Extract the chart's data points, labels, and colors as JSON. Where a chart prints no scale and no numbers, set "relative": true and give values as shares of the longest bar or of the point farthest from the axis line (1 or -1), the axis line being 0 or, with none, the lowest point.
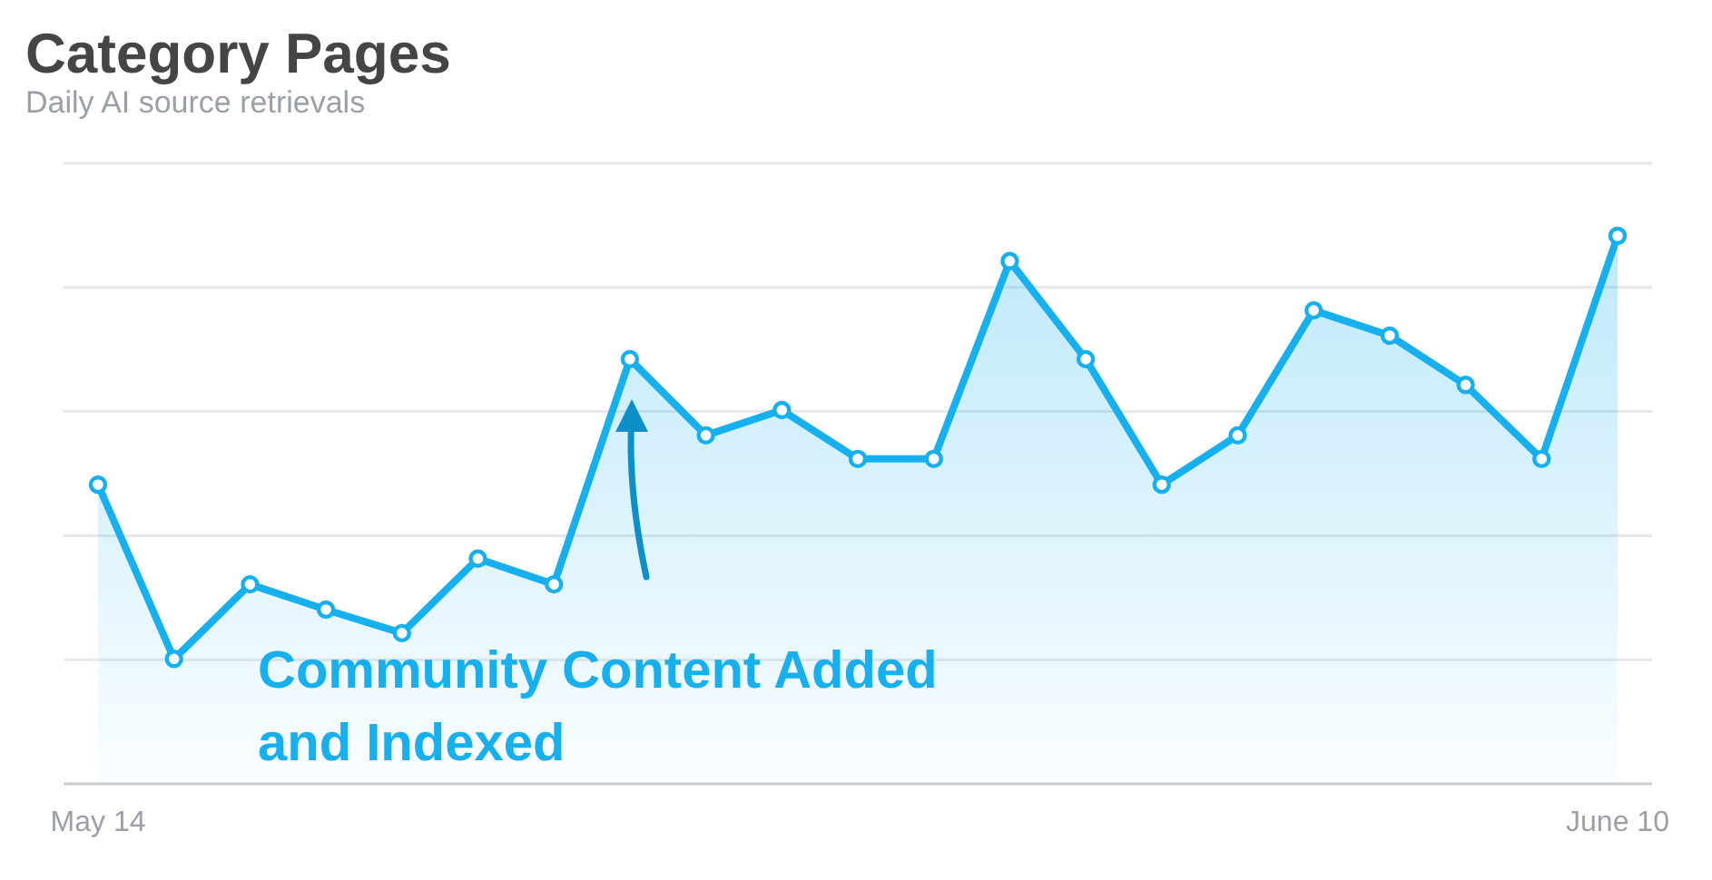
{
  "chart_data": {
    "type": "area",
    "title": "Category Pages",
    "subtitle": "Daily AI source retrievals",
    "relative": true,
    "grid": true,
    "marker": "circle",
    "line_style": "solid",
    "categories": [
      "May 14",
      null,
      null,
      null,
      null,
      null,
      null,
      null,
      null,
      null,
      null,
      null,
      null,
      null,
      null,
      null,
      null,
      null,
      null,
      null,
      "June 10"
    ],
    "series": [
      {
        "color": "#16b0ee",
        "values": [
          0.546,
          0.228,
          0.364,
          0.318,
          0.275,
          0.411,
          0.364,
          0.775,
          0.636,
          0.682,
          0.593,
          0.593,
          0.954,
          0.775,
          0.546,
          0.636,
          0.864,
          0.818,
          0.728,
          0.593,
          1
        ]
      }
    ],
    "annotations": [
      "Community Content Added and Indexed"
    ]
  }
}
